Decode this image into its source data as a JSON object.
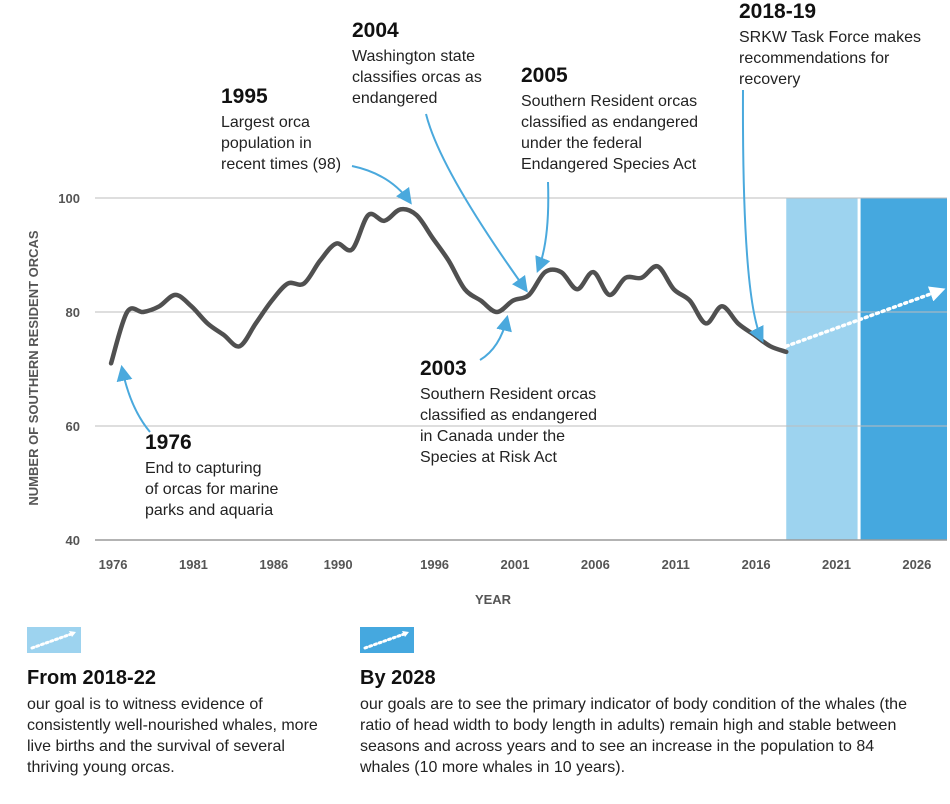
{
  "chart_data": {
    "type": "line",
    "xlabel": "YEAR",
    "ylabel": "NUMBER OF SOUTHERN RESIDENT ORCAS",
    "xlim": [
      1975,
      2028
    ],
    "ylim": [
      40,
      100
    ],
    "x_ticks": [
      "1976",
      "1981",
      "1986",
      "1990",
      "1996",
      "2001",
      "2006",
      "2011",
      "2016",
      "2021",
      "2026"
    ],
    "y_ticks": [
      "40",
      "60",
      "80",
      "100"
    ],
    "grid": "horizontal",
    "series": [
      {
        "name": "Southern Resident orca population",
        "color": "#505050",
        "x": [
          1976,
          1977,
          1978,
          1979,
          1980,
          1981,
          1982,
          1983,
          1984,
          1985,
          1986,
          1987,
          1988,
          1989,
          1990,
          1991,
          1992,
          1993,
          1994,
          1995,
          1996,
          1997,
          1998,
          1999,
          2000,
          2001,
          2002,
          2003,
          2004,
          2005,
          2006,
          2007,
          2008,
          2009,
          2010,
          2011,
          2012,
          2013,
          2014,
          2015,
          2016,
          2017,
          2018
        ],
        "y": [
          71,
          80,
          80,
          81,
          83,
          81,
          78,
          76,
          74,
          78,
          82,
          85,
          85,
          89,
          92,
          91,
          97,
          96,
          98,
          97,
          93,
          89,
          84,
          82,
          80,
          82,
          83,
          87,
          87,
          84,
          87,
          83,
          86,
          86,
          88,
          84,
          82,
          78,
          81,
          78,
          76,
          74,
          73
        ]
      },
      {
        "name": "Recovery target",
        "style": "dotted",
        "color": "#ffffff",
        "x": [
          2018,
          2028
        ],
        "y": [
          74,
          84
        ]
      }
    ],
    "shaded_periods": [
      {
        "label": "From 2018-22",
        "from": 2018,
        "to": 2022.5,
        "color": "#9dd3ef"
      },
      {
        "label": "By 2028",
        "from": 2022.5,
        "to": 2028,
        "color": "#45a8df"
      }
    ],
    "annotations": [
      {
        "year": "1976",
        "text": [
          "End to capturing",
          "of orcas for marine",
          "parks and aquaria"
        ]
      },
      {
        "year": "1995",
        "text": [
          "Largest orca",
          "population in",
          "recent times (98)"
        ]
      },
      {
        "year": "2004",
        "text": [
          "Washington state",
          "classifies orcas as",
          "endangered"
        ]
      },
      {
        "year": "2005",
        "text": [
          "Southern Resident orcas",
          "classified as endangered",
          "under the federal",
          "Endangered Species Act"
        ]
      },
      {
        "year": "2003",
        "text": [
          "Southern Resident orcas",
          "classified as endangered",
          "in Canada under the",
          "Species at Risk Act"
        ]
      },
      {
        "year": "2018-19",
        "text": [
          "SRKW Task Force makes",
          "recommendations for",
          "recovery"
        ]
      }
    ]
  },
  "legend": {
    "period1": {
      "title": "From 2018-22",
      "color": "#9dd3ef",
      "text": "our goal is to witness evidence of consistently well-nourished whales, more live births and the survival of several thriving young orcas."
    },
    "period2": {
      "title": "By 2028",
      "color": "#45a8df",
      "text": "our goals are to see the primary indicator of body condition of the whales (the ratio of head width to body length in adults) remain high and stable between seasons and across years and to see an increase in the population to 84 whales (10 more whales in 10 years)."
    }
  }
}
